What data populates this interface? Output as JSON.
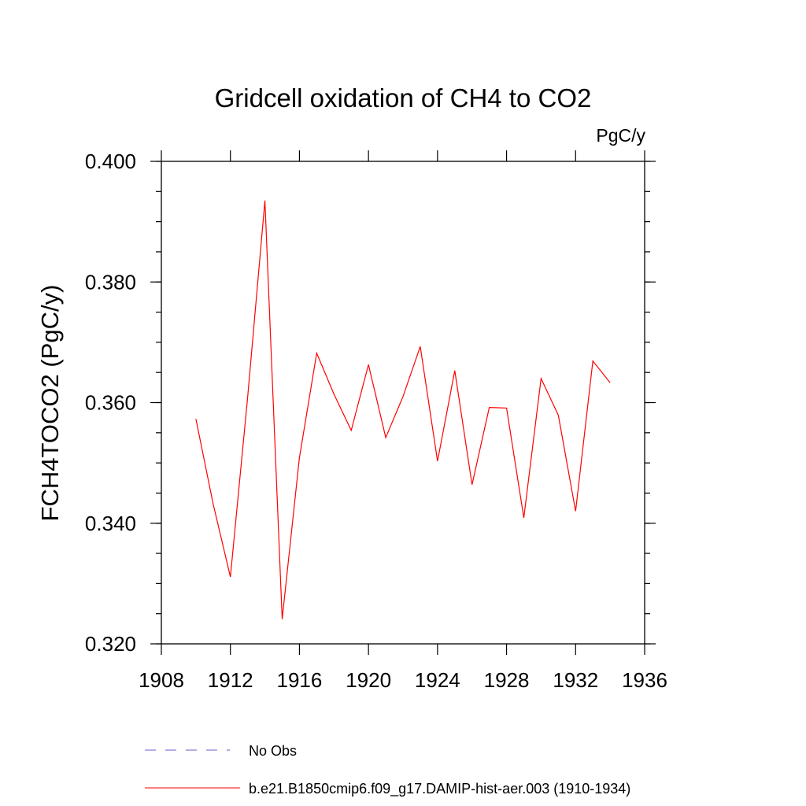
{
  "chart_data": {
    "type": "line",
    "title": "Gridcell oxidation of CH4 to CO2",
    "units": "PgC/y",
    "xlabel": "",
    "ylabel": "FCH4TOCO2  (PgC/y)",
    "xlim": [
      1908,
      1936
    ],
    "ylim": [
      0.32,
      0.4
    ],
    "x_ticks": [
      "1908",
      "1912",
      "1916",
      "1920",
      "1924",
      "1928",
      "1932",
      "1936"
    ],
    "y_ticks": [
      "0.320",
      "0.340",
      "0.360",
      "0.380",
      "0.400"
    ],
    "grid": false,
    "legend_position": "bottom",
    "series": [
      {
        "name": "b.e21.B1850cmip6.f09_g17.DAMIP-hist-aer.003 (1910-1934)",
        "color": "#ff0000",
        "style": "solid",
        "x": [
          1910,
          1911,
          1912,
          1913,
          1914,
          1915,
          1916,
          1917,
          1918,
          1919,
          1920,
          1921,
          1922,
          1923,
          1924,
          1925,
          1926,
          1927,
          1928,
          1929,
          1930,
          1931,
          1932,
          1933,
          1934
        ],
        "y": [
          0.3573,
          0.3432,
          0.3311,
          0.3609,
          0.3935,
          0.3241,
          0.3509,
          0.3682,
          0.3614,
          0.3554,
          0.3663,
          0.3542,
          0.361,
          0.3693,
          0.3503,
          0.3653,
          0.3464,
          0.3592,
          0.3591,
          0.3409,
          0.364,
          0.3579,
          0.342,
          0.3669,
          0.3633
        ]
      }
    ],
    "legend": [
      {
        "label": "No Obs",
        "color": "#6a5acd",
        "style": "dashed"
      },
      {
        "label": "b.e21.B1850cmip6.f09_g17.DAMIP-hist-aer.003 (1910-1934)",
        "color": "#ff0000",
        "style": "solid"
      }
    ]
  }
}
